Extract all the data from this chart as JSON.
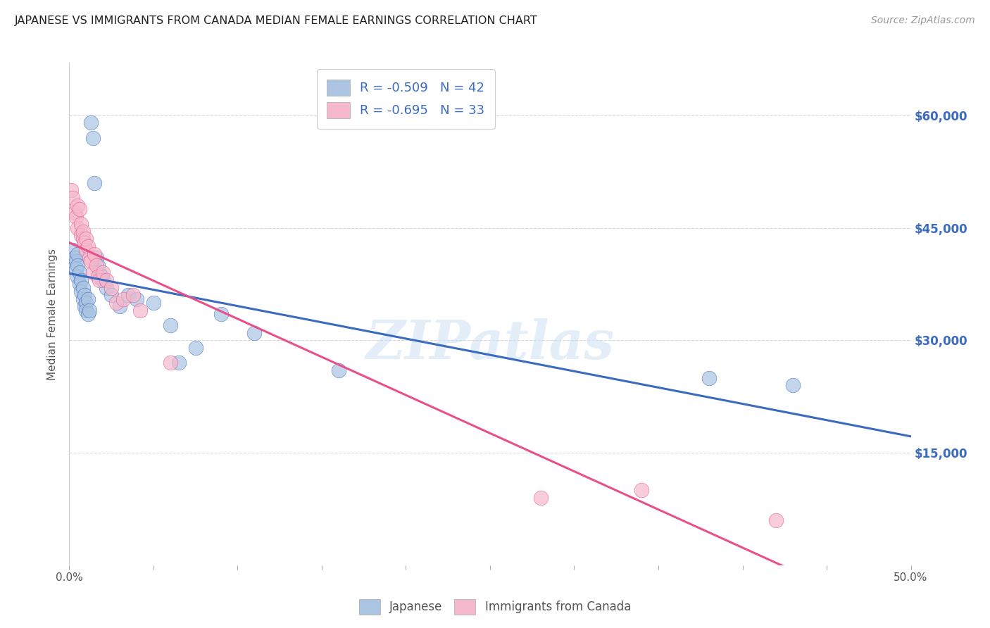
{
  "title": "JAPANESE VS IMMIGRANTS FROM CANADA MEDIAN FEMALE EARNINGS CORRELATION CHART",
  "source": "Source: ZipAtlas.com",
  "ylabel": "Median Female Earnings",
  "ytick_labels": [
    "$15,000",
    "$30,000",
    "$45,000",
    "$60,000"
  ],
  "ytick_values": [
    15000,
    30000,
    45000,
    60000
  ],
  "ymin": 0,
  "ymax": 67000,
  "xmin": 0.0,
  "xmax": 0.5,
  "watermark_text": "ZIPatlas",
  "legend_label1": "R = -0.509   N = 42",
  "legend_label2": "R = -0.695   N = 33",
  "series1_label": "Japanese",
  "series2_label": "Immigrants from Canada",
  "series1_color": "#aac4e2",
  "series2_color": "#f5b8cc",
  "series1_line_color": "#3a6bbf",
  "series2_line_color": "#e8508a",
  "background_color": "#ffffff",
  "grid_color": "#d8d8d8",
  "title_color": "#222222",
  "right_axis_color": "#3a6bbf",
  "japanese_x": [
    0.002,
    0.003,
    0.004,
    0.004,
    0.005,
    0.005,
    0.005,
    0.006,
    0.006,
    0.007,
    0.007,
    0.008,
    0.008,
    0.009,
    0.009,
    0.01,
    0.01,
    0.011,
    0.011,
    0.012,
    0.013,
    0.014,
    0.015,
    0.016,
    0.017,
    0.018,
    0.019,
    0.02,
    0.022,
    0.025,
    0.03,
    0.035,
    0.04,
    0.05,
    0.06,
    0.065,
    0.075,
    0.09,
    0.11,
    0.16,
    0.38,
    0.43
  ],
  "japanese_y": [
    42000,
    41000,
    40500,
    39500,
    41500,
    40000,
    38500,
    39000,
    37500,
    38000,
    36500,
    37000,
    35500,
    36000,
    34500,
    35000,
    34000,
    35500,
    33500,
    34000,
    59000,
    57000,
    51000,
    41000,
    40000,
    39000,
    38500,
    38000,
    37000,
    36000,
    34500,
    36000,
    35500,
    35000,
    32000,
    27000,
    29000,
    33500,
    31000,
    26000,
    25000,
    24000
  ],
  "canada_x": [
    0.001,
    0.002,
    0.003,
    0.004,
    0.005,
    0.005,
    0.006,
    0.007,
    0.007,
    0.008,
    0.008,
    0.009,
    0.01,
    0.01,
    0.011,
    0.012,
    0.013,
    0.014,
    0.015,
    0.016,
    0.017,
    0.018,
    0.02,
    0.022,
    0.025,
    0.028,
    0.032,
    0.038,
    0.042,
    0.06,
    0.28,
    0.34,
    0.42
  ],
  "canada_y": [
    50000,
    49000,
    47000,
    46500,
    48000,
    45000,
    47500,
    45500,
    44000,
    43500,
    44500,
    43000,
    42000,
    43500,
    42500,
    41000,
    40500,
    39000,
    41500,
    40000,
    38500,
    38000,
    39000,
    38000,
    37000,
    35000,
    35500,
    36000,
    34000,
    27000,
    9000,
    10000,
    6000
  ]
}
